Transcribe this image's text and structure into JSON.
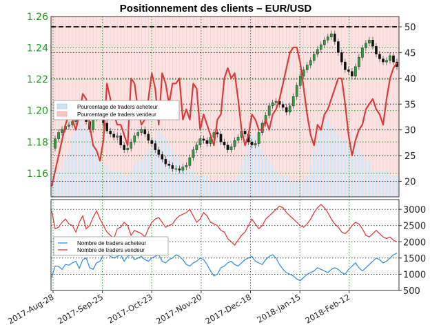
{
  "chart_data": [
    {
      "type": "line",
      "title": "Positionnement des clients – EUR/USD",
      "xlabel": "",
      "ylabel": "",
      "x_ticks": [
        "2017-Aug-28",
        "2017-Sep-25",
        "2017-Oct-23",
        "2017-Nov-20",
        "2017-Dec-18",
        "2018-Jan-15",
        "2018-Feb-12"
      ],
      "y_left_ticks": [
        "1.16",
        "1.18",
        "1.20",
        "1.22",
        "1.24",
        "1.26"
      ],
      "y_left_lim": [
        1.145,
        1.26
      ],
      "y_right_ticks": [
        "20",
        "25",
        "30",
        "35",
        "40",
        "45",
        "50"
      ],
      "y_right_lim": [
        17,
        52
      ],
      "reference_line": 50,
      "grid": true,
      "legend_position": "left",
      "series": [
        {
          "name": "Pourcentage de traders acheteur",
          "kind": "area",
          "axis": "right",
          "color": "#cfe3f5",
          "values": [
            22,
            22,
            22,
            22,
            24,
            26,
            29,
            30,
            32,
            31,
            30,
            29,
            28,
            26,
            24,
            23,
            23,
            22,
            22,
            22,
            22,
            21,
            21,
            22,
            23,
            24,
            24,
            25,
            26,
            27,
            28,
            30,
            29,
            28,
            27,
            26,
            25,
            24,
            23,
            23,
            22,
            22,
            21,
            21,
            21,
            21,
            20,
            20,
            20,
            20,
            20,
            20,
            20,
            20,
            21,
            23,
            25,
            27,
            29,
            29,
            27,
            26,
            25,
            24,
            23,
            22,
            21,
            21,
            21,
            20,
            20,
            20,
            20,
            20,
            21,
            23,
            26,
            28,
            30,
            32,
            32,
            31,
            30,
            29,
            28,
            28,
            27,
            27,
            27,
            26,
            25,
            24,
            24,
            22,
            22,
            22,
            22,
            22,
            21,
            21,
            21
          ]
        },
        {
          "name": "Pourcentage de traders vendeur",
          "kind": "line",
          "axis": "right",
          "color": "#d93a3a",
          "values": [
            19,
            22,
            25,
            28,
            31,
            33,
            32,
            30,
            33,
            37,
            36,
            31,
            27,
            26,
            24,
            28,
            39,
            36,
            33,
            31,
            31,
            29,
            27,
            40,
            39,
            34,
            31,
            32,
            36,
            41,
            38,
            31,
            41,
            39,
            35,
            39,
            39,
            40,
            32,
            34,
            32,
            39,
            38,
            30,
            33,
            31,
            29,
            27,
            32,
            33,
            40,
            42,
            40,
            41,
            36,
            30,
            27,
            29,
            33,
            32,
            30,
            30,
            32,
            30,
            33,
            34,
            36,
            39,
            42,
            45,
            46,
            46,
            43,
            38,
            33,
            29,
            27,
            31,
            30,
            33,
            34,
            36,
            38,
            40,
            40,
            35,
            29,
            25,
            28,
            30,
            31,
            34,
            35,
            36,
            34,
            33,
            31,
            36,
            40,
            42,
            43
          ]
        },
        {
          "name": "EUR/USD",
          "kind": "candlestick",
          "axis": "left",
          "color": "#2e6e2e",
          "values": [
            1.176,
            1.182,
            1.186,
            1.188,
            1.19,
            1.191,
            1.193,
            1.196,
            1.201,
            1.199,
            1.193,
            1.188,
            1.195,
            1.199,
            1.197,
            1.192,
            1.187,
            1.185,
            1.183,
            1.184,
            1.178,
            1.175,
            1.176,
            1.18,
            1.184,
            1.186,
            1.188,
            1.185,
            1.181,
            1.179,
            1.175,
            1.172,
            1.169,
            1.166,
            1.165,
            1.163,
            1.163,
            1.162,
            1.164,
            1.165,
            1.17,
            1.175,
            1.178,
            1.182,
            1.181,
            1.179,
            1.183,
            1.186,
            1.185,
            1.18,
            1.178,
            1.175,
            1.177,
            1.181,
            1.183,
            1.187,
            1.185,
            1.18,
            1.178,
            1.179,
            1.186,
            1.192,
            1.197,
            1.203,
            1.205,
            1.206,
            1.204,
            1.202,
            1.199,
            1.203,
            1.209,
            1.216,
            1.222,
            1.226,
            1.229,
            1.232,
            1.236,
            1.239,
            1.242,
            1.245,
            1.247,
            1.249,
            1.244,
            1.237,
            1.231,
            1.226,
            1.225,
            1.222,
            1.228,
            1.234,
            1.24,
            1.243,
            1.245,
            1.241,
            1.236,
            1.233,
            1.231,
            1.232,
            1.235,
            1.231,
            1.228
          ]
        }
      ]
    },
    {
      "type": "line",
      "title": "",
      "xlabel": "",
      "ylabel": "",
      "y_right_ticks": [
        "500",
        "1000",
        "1500",
        "2000",
        "2500",
        "3000"
      ],
      "ylim": [
        500,
        3300
      ],
      "grid": true,
      "legend_position": "left",
      "series": [
        {
          "name": "Nombre de traders acheteur",
          "color": "#3c8fe0",
          "values": [
            900,
            1250,
            1240,
            1150,
            1300,
            1280,
            1350,
            1400,
            1180,
            1450,
            1500,
            1200,
            1150,
            1350,
            1400,
            1600,
            1650,
            1550,
            1500,
            1550,
            1600,
            1400,
            1550,
            1600,
            1450,
            1500,
            1550,
            1450,
            1400,
            1500,
            1550,
            1600,
            1400,
            1350,
            1450,
            1500,
            1600,
            1550,
            1450,
            1300,
            1250,
            1350,
            1400,
            1500,
            1450,
            1300,
            1100,
            950,
            1000,
            1200,
            1250,
            1350,
            1400,
            1300,
            1250,
            1350,
            1450,
            1500,
            1550,
            1400,
            1350,
            1300,
            1450,
            1550,
            1600,
            1500,
            1300,
            1150,
            1050,
            1000,
            950,
            850,
            800,
            900,
            1000,
            1050,
            1100,
            1200,
            1150,
            1100,
            1050,
            1150,
            1200,
            1150,
            1050,
            1000,
            1150,
            1250,
            1350,
            1200,
            1100,
            1200,
            1300,
            1400,
            1500,
            1450,
            1350,
            1400,
            1500,
            1600,
            1650
          ]
        },
        {
          "name": "Nombre de traders vendeur",
          "color": "#e03c3c",
          "values": [
            2950,
            2400,
            2450,
            2600,
            2700,
            2550,
            2500,
            2300,
            2600,
            2800,
            2400,
            2500,
            2750,
            2950,
            2700,
            2500,
            2300,
            2200,
            2100,
            2400,
            2450,
            2600,
            2500,
            2200,
            2350,
            2300,
            2250,
            2150,
            2400,
            2600,
            2700,
            2750,
            2600,
            2450,
            2500,
            2550,
            2700,
            2800,
            2850,
            2900,
            3000,
            2800,
            2600,
            2700,
            2900,
            2800,
            2600,
            2550,
            2500,
            2350,
            2300,
            2100,
            2000,
            1900,
            2050,
            2200,
            2300,
            2500,
            2700,
            2550,
            2400,
            2500,
            2700,
            2800,
            2900,
            3000,
            3100,
            3050,
            2900,
            2800,
            2700,
            2600,
            2500,
            2450,
            2550,
            2700,
            2900,
            3050,
            3150,
            3050,
            2900,
            2700,
            2550,
            2450,
            2300,
            2250,
            2350,
            2500,
            2600,
            2550,
            2400,
            2200,
            2150,
            2250,
            2350,
            2250,
            2150,
            2100,
            2150,
            2050,
            2000
          ]
        }
      ]
    }
  ]
}
